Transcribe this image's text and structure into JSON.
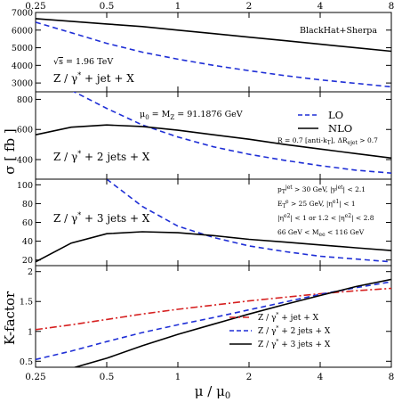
{
  "chart_data": {
    "type": "line",
    "x_axis": {
      "label": "μ / μ₀",
      "scale": "log",
      "range": [
        0.25,
        8
      ],
      "ticks": [
        "0.25",
        "0.5",
        "1",
        "2",
        "4",
        "8"
      ]
    },
    "shared_ylabel": "σ  [ fb ]",
    "panels": [
      {
        "id": "jet1",
        "process_label": "Z / γ* + jet + X",
        "ylim": [
          2500,
          7000
        ],
        "yticks": [
          "3000",
          "4000",
          "5000",
          "6000",
          "7000"
        ],
        "annotations": [
          "BlackHat+Sherpa",
          "√s = 1.96 TeV"
        ],
        "series": [
          {
            "name": "LO",
            "style": "dashed",
            "color": "#1f2fd6",
            "x": [
              0.25,
              0.354,
              0.5,
              0.707,
              1,
              1.414,
              2,
              2.83,
              4,
              5.66,
              8
            ],
            "y": [
              6450,
              5850,
              5250,
              4750,
              4350,
              4000,
              3700,
              3420,
              3180,
              2980,
              2780
            ]
          },
          {
            "name": "NLO",
            "style": "solid",
            "color": "#000000",
            "x": [
              0.25,
              0.354,
              0.5,
              0.707,
              1,
              1.414,
              2,
              2.83,
              4,
              5.66,
              8
            ],
            "y": [
              6650,
              6500,
              6350,
              6200,
              6000,
              5800,
              5600,
              5400,
              5200,
              5000,
              4800
            ]
          }
        ]
      },
      {
        "id": "jet2",
        "process_label": "Z / γ* + 2 jets + X",
        "ylim": [
          270,
          850
        ],
        "yticks": [
          "400",
          "600",
          "800"
        ],
        "annotations": [
          "μ₀ = M_Z = 91.1876 GeV",
          "R = 0.7  [anti-kT],  ΔR_ejet > 0.7"
        ],
        "legend": [
          "LO",
          "NLO"
        ],
        "series": [
          {
            "name": "LO",
            "style": "dashed",
            "color": "#1f2fd6",
            "x": [
              0.354,
              0.5,
              0.707,
              1,
              1.414,
              2,
              2.83,
              4,
              5.66,
              8
            ],
            "y": [
              860,
              740,
              630,
              550,
              485,
              435,
              395,
              360,
              330,
              310
            ]
          },
          {
            "name": "NLO",
            "style": "solid",
            "color": "#000000",
            "x": [
              0.25,
              0.354,
              0.5,
              0.707,
              1,
              1.414,
              2,
              2.83,
              4,
              5.66,
              8
            ],
            "y": [
              565,
              615,
              630,
              620,
              595,
              565,
              535,
              500,
              470,
              440,
              410
            ]
          }
        ]
      },
      {
        "id": "jet3",
        "process_label": "Z / γ* + 3 jets + X",
        "ylim": [
          14,
          106
        ],
        "yticks": [
          "20",
          "40",
          "60",
          "80",
          "100"
        ],
        "annotations": [
          "p_T^jet > 30 GeV,  |y^jet| < 2.1",
          "E_T^e > 25 GeV,  |η^e1| < 1",
          "|η^e2| < 1 or 1.2 < |η^e2| < 2.8",
          "66 GeV < M_ee < 116 GeV"
        ],
        "series": [
          {
            "name": "LO",
            "style": "dashed",
            "color": "#1f2fd6",
            "x": [
              0.5,
              0.707,
              1,
              1.414,
              2,
              2.83,
              4,
              5.66,
              8
            ],
            "y": [
              106,
              77,
              56,
              44,
              35,
              29,
              24,
              21,
              18
            ]
          },
          {
            "name": "NLO",
            "style": "solid",
            "color": "#000000",
            "x": [
              0.25,
              0.354,
              0.5,
              0.707,
              1,
              1.414,
              2,
              2.83,
              4,
              5.66,
              8
            ],
            "y": [
              18,
              38,
              48,
              50,
              49,
              46,
              42,
              39,
              36,
              33,
              30
            ]
          }
        ]
      },
      {
        "id": "kfactor",
        "ylabel": "K-factor",
        "ylim": [
          0.4,
          2.1
        ],
        "yticks": [
          "0.5",
          "1",
          "1.5",
          "2"
        ],
        "legend": [
          "Z / γ* + jet + X",
          "Z / γ* + 2 jets + X",
          "Z / γ* + 3 jets + X"
        ],
        "series": [
          {
            "name": "Z / γ* + jet + X",
            "style": "dashdot",
            "color": "#d62020",
            "x": [
              0.25,
              0.354,
              0.5,
              0.707,
              1,
              1.414,
              2,
              2.83,
              4,
              5.66,
              8
            ],
            "y": [
              1.03,
              1.11,
              1.2,
              1.29,
              1.37,
              1.44,
              1.51,
              1.57,
              1.63,
              1.68,
              1.72
            ]
          },
          {
            "name": "Z / γ* + 2 jets + X",
            "style": "dashed",
            "color": "#1f2fd6",
            "x": [
              0.25,
              0.354,
              0.5,
              0.707,
              1,
              1.414,
              2,
              2.83,
              4,
              5.66,
              8
            ],
            "y": [
              0.53,
              0.67,
              0.83,
              0.98,
              1.11,
              1.23,
              1.36,
              1.49,
              1.62,
              1.73,
              1.83
            ]
          },
          {
            "name": "Z / γ* + 3 jets + X",
            "style": "solid",
            "color": "#000000",
            "x": [
              0.354,
              0.5,
              0.707,
              1,
              1.414,
              2,
              2.83,
              4,
              5.66,
              8
            ],
            "y": [
              0.38,
              0.55,
              0.76,
              0.95,
              1.12,
              1.29,
              1.45,
              1.6,
              1.75,
              1.87
            ]
          }
        ]
      }
    ]
  }
}
